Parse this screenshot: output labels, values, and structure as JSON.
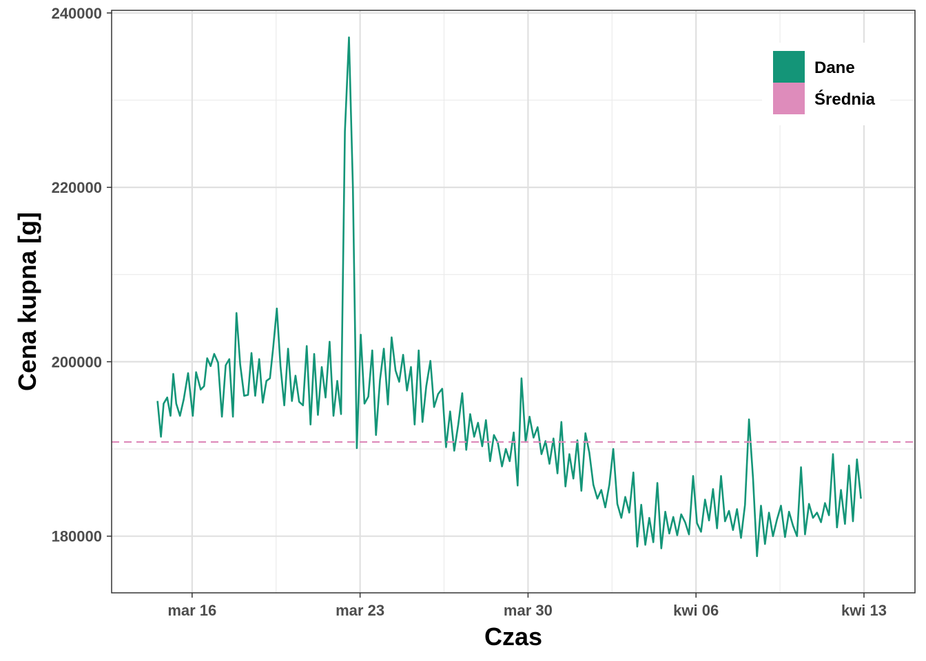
{
  "chart_data": {
    "type": "line",
    "xlabel": "Czas",
    "ylabel": "Cena kupna [g]",
    "x_unit": "date",
    "xlim": [
      "2025-03-12T15:30",
      "2025-04-15T03:00"
    ],
    "ylim": [
      173500,
      240300
    ],
    "x_ticks": [
      {
        "date": "2025-03-16",
        "label": "mar 16"
      },
      {
        "date": "2025-03-23",
        "label": "mar 23"
      },
      {
        "date": "2025-03-30",
        "label": "mar 30"
      },
      {
        "date": "2025-04-06",
        "label": "kwi 06"
      },
      {
        "date": "2025-04-13",
        "label": "kwi 13"
      }
    ],
    "x_minor_ticks": [
      "2025-03-19T12:00",
      "2025-03-26T12:00",
      "2025-04-02T12:00",
      "2025-04-09T12:00"
    ],
    "y_ticks": [
      180000,
      200000,
      220000,
      240000
    ],
    "y_minor_ticks": [
      190000,
      210000,
      230000
    ],
    "grid": true,
    "legend": {
      "position": "top-right",
      "items": [
        {
          "label": "Dane",
          "color": "#149578"
        },
        {
          "label": "Średnia",
          "color": "#de8cbb"
        }
      ]
    },
    "series": [
      {
        "name": "Dane",
        "color": "#149578",
        "points": [
          [
            "2025-03-14T13:25",
            195500
          ],
          [
            "2025-03-14T16:50",
            191400
          ],
          [
            "2025-03-14T19:30",
            195200
          ],
          [
            "2025-03-14T23:05",
            195900
          ],
          [
            "2025-03-15T02:25",
            193800
          ],
          [
            "2025-03-15T05:10",
            198600
          ],
          [
            "2025-03-15T08:10",
            195200
          ],
          [
            "2025-03-15T11:50",
            193800
          ],
          [
            "2025-03-15T15:40",
            195700
          ],
          [
            "2025-03-15T20:00",
            198700
          ],
          [
            "2025-03-16T00:40",
            193800
          ],
          [
            "2025-03-16T04:00",
            198800
          ],
          [
            "2025-03-16T08:35",
            196800
          ],
          [
            "2025-03-16T12:00",
            197200
          ],
          [
            "2025-03-16T15:05",
            200400
          ],
          [
            "2025-03-16T18:30",
            199500
          ],
          [
            "2025-03-16T22:05",
            200900
          ],
          [
            "2025-03-17T02:00",
            199900
          ],
          [
            "2025-03-17T05:50",
            193700
          ],
          [
            "2025-03-17T09:35",
            199600
          ],
          [
            "2025-03-17T13:10",
            200300
          ],
          [
            "2025-03-17T16:50",
            193700
          ],
          [
            "2025-03-17T20:20",
            205600
          ],
          [
            "2025-03-18T00:05",
            199700
          ],
          [
            "2025-03-18T04:05",
            196100
          ],
          [
            "2025-03-18T07:55",
            196200
          ],
          [
            "2025-03-18T11:25",
            201000
          ],
          [
            "2025-03-18T15:05",
            196100
          ],
          [
            "2025-03-18T19:05",
            200300
          ],
          [
            "2025-03-18T22:40",
            195300
          ],
          [
            "2025-03-19T02:20",
            197800
          ],
          [
            "2025-03-19T05:50",
            198100
          ],
          [
            "2025-03-19T09:10",
            201700
          ],
          [
            "2025-03-19T12:45",
            206100
          ],
          [
            "2025-03-19T16:25",
            199500
          ],
          [
            "2025-03-19T20:10",
            195000
          ],
          [
            "2025-03-20T00:00",
            201500
          ],
          [
            "2025-03-20T03:50",
            195500
          ],
          [
            "2025-03-20T07:25",
            198400
          ],
          [
            "2025-03-20T11:05",
            195400
          ],
          [
            "2025-03-20T14:55",
            195000
          ],
          [
            "2025-03-20T18:40",
            201800
          ],
          [
            "2025-03-20T22:25",
            192800
          ],
          [
            "2025-03-21T02:05",
            200900
          ],
          [
            "2025-03-21T05:50",
            193900
          ],
          [
            "2025-03-21T09:40",
            199400
          ],
          [
            "2025-03-21T13:30",
            195900
          ],
          [
            "2025-03-21T17:30",
            202300
          ],
          [
            "2025-03-21T21:25",
            193800
          ],
          [
            "2025-03-22T01:10",
            197800
          ],
          [
            "2025-03-22T05:00",
            194000
          ],
          [
            "2025-03-22T08:50",
            226400
          ],
          [
            "2025-03-22T12:55",
            237200
          ],
          [
            "2025-03-22T16:50",
            220000
          ],
          [
            "2025-03-22T20:45",
            190100
          ],
          [
            "2025-03-23T00:40",
            203100
          ],
          [
            "2025-03-23T04:25",
            195200
          ],
          [
            "2025-03-23T08:15",
            196000
          ],
          [
            "2025-03-23T12:10",
            201300
          ],
          [
            "2025-03-23T15:55",
            191600
          ],
          [
            "2025-03-23T19:55",
            197900
          ],
          [
            "2025-03-23T23:45",
            201500
          ],
          [
            "2025-03-24T03:50",
            195100
          ],
          [
            "2025-03-24T07:35",
            202800
          ],
          [
            "2025-03-24T11:30",
            199000
          ],
          [
            "2025-03-24T15:10",
            197700
          ],
          [
            "2025-03-24T19:05",
            200800
          ],
          [
            "2025-03-24T22:55",
            196700
          ],
          [
            "2025-03-25T02:55",
            199400
          ],
          [
            "2025-03-25T06:35",
            192800
          ],
          [
            "2025-03-25T10:40",
            201300
          ],
          [
            "2025-03-25T14:25",
            193100
          ],
          [
            "2025-03-25T18:15",
            197200
          ],
          [
            "2025-03-25T22:20",
            200100
          ],
          [
            "2025-03-26T02:00",
            194800
          ],
          [
            "2025-03-26T06:05",
            196300
          ],
          [
            "2025-03-26T10:10",
            196900
          ],
          [
            "2025-03-26T14:00",
            190200
          ],
          [
            "2025-03-26T18:05",
            194300
          ],
          [
            "2025-03-26T22:10",
            189800
          ],
          [
            "2025-03-27T02:10",
            192800
          ],
          [
            "2025-03-27T06:10",
            196400
          ],
          [
            "2025-03-27T10:10",
            189900
          ],
          [
            "2025-03-27T14:05",
            194000
          ],
          [
            "2025-03-27T18:05",
            191400
          ],
          [
            "2025-03-27T22:00",
            193000
          ],
          [
            "2025-03-28T02:10",
            190300
          ],
          [
            "2025-03-28T05:55",
            193300
          ],
          [
            "2025-03-28T10:00",
            188600
          ],
          [
            "2025-03-28T13:55",
            191600
          ],
          [
            "2025-03-28T17:50",
            190700
          ],
          [
            "2025-03-28T21:55",
            188000
          ],
          [
            "2025-03-29T01:50",
            190000
          ],
          [
            "2025-03-29T05:40",
            188600
          ],
          [
            "2025-03-29T09:40",
            191900
          ],
          [
            "2025-03-29T13:35",
            185800
          ],
          [
            "2025-03-29T17:25",
            198100
          ],
          [
            "2025-03-29T21:35",
            190800
          ],
          [
            "2025-03-30T01:30",
            193700
          ],
          [
            "2025-03-30T05:30",
            191300
          ],
          [
            "2025-03-30T09:35",
            192500
          ],
          [
            "2025-03-30T13:25",
            189400
          ],
          [
            "2025-03-30T17:30",
            190900
          ],
          [
            "2025-03-30T21:25",
            188300
          ],
          [
            "2025-03-31T01:25",
            191200
          ],
          [
            "2025-03-31T05:25",
            187200
          ],
          [
            "2025-03-31T09:20",
            193100
          ],
          [
            "2025-03-31T13:25",
            185700
          ],
          [
            "2025-03-31T17:20",
            189400
          ],
          [
            "2025-03-31T21:20",
            186600
          ],
          [
            "2025-04-01T01:20",
            191000
          ],
          [
            "2025-04-01T05:20",
            185200
          ],
          [
            "2025-04-01T09:25",
            191800
          ],
          [
            "2025-04-01T13:15",
            189600
          ],
          [
            "2025-04-01T17:20",
            185900
          ],
          [
            "2025-04-01T21:20",
            184300
          ],
          [
            "2025-04-02T01:15",
            185300
          ],
          [
            "2025-04-02T05:15",
            183300
          ],
          [
            "2025-04-02T09:20",
            185900
          ],
          [
            "2025-04-02T13:15",
            190000
          ],
          [
            "2025-04-02T17:20",
            183700
          ],
          [
            "2025-04-02T21:20",
            182100
          ],
          [
            "2025-04-03T01:15",
            184500
          ],
          [
            "2025-04-03T05:15",
            182700
          ],
          [
            "2025-04-03T09:20",
            187300
          ],
          [
            "2025-04-03T13:15",
            178800
          ],
          [
            "2025-04-03T17:15",
            183600
          ],
          [
            "2025-04-03T21:15",
            179000
          ],
          [
            "2025-04-04T01:15",
            182100
          ],
          [
            "2025-04-04T05:15",
            179300
          ],
          [
            "2025-04-04T09:20",
            186100
          ],
          [
            "2025-04-04T13:15",
            178600
          ],
          [
            "2025-04-04T17:15",
            182800
          ],
          [
            "2025-04-04T21:15",
            180300
          ],
          [
            "2025-04-05T01:15",
            182200
          ],
          [
            "2025-04-05T05:10",
            180100
          ],
          [
            "2025-04-05T09:10",
            182500
          ],
          [
            "2025-04-05T13:05",
            181600
          ],
          [
            "2025-04-05T17:00",
            180200
          ],
          [
            "2025-04-05T21:05",
            186900
          ],
          [
            "2025-04-06T01:00",
            181500
          ],
          [
            "2025-04-06T05:00",
            180500
          ],
          [
            "2025-04-06T09:00",
            184200
          ],
          [
            "2025-04-06T13:00",
            181800
          ],
          [
            "2025-04-06T17:00",
            185400
          ],
          [
            "2025-04-06T21:00",
            180900
          ],
          [
            "2025-04-07T01:00",
            186900
          ],
          [
            "2025-04-07T05:00",
            181700
          ],
          [
            "2025-04-07T09:00",
            182900
          ],
          [
            "2025-04-07T13:00",
            180700
          ],
          [
            "2025-04-07T17:00",
            183100
          ],
          [
            "2025-04-07T21:00",
            179800
          ],
          [
            "2025-04-08T01:00",
            183600
          ],
          [
            "2025-04-08T05:00",
            193400
          ],
          [
            "2025-04-08T09:00",
            186700
          ],
          [
            "2025-04-08T13:00",
            177700
          ],
          [
            "2025-04-08T17:00",
            183500
          ],
          [
            "2025-04-08T21:00",
            179100
          ],
          [
            "2025-04-09T01:00",
            182700
          ],
          [
            "2025-04-09T05:00",
            180000
          ],
          [
            "2025-04-09T09:00",
            181900
          ],
          [
            "2025-04-09T13:00",
            183500
          ],
          [
            "2025-04-09T17:00",
            179900
          ],
          [
            "2025-04-09T21:00",
            182800
          ],
          [
            "2025-04-10T01:00",
            181200
          ],
          [
            "2025-04-10T05:00",
            180000
          ],
          [
            "2025-04-10T09:00",
            187900
          ],
          [
            "2025-04-10T13:00",
            180200
          ],
          [
            "2025-04-10T17:00",
            183700
          ],
          [
            "2025-04-10T21:00",
            182100
          ],
          [
            "2025-04-11T01:00",
            182700
          ],
          [
            "2025-04-11T05:00",
            181600
          ],
          [
            "2025-04-11T09:00",
            183800
          ],
          [
            "2025-04-11T13:00",
            182400
          ],
          [
            "2025-04-11T17:00",
            189400
          ],
          [
            "2025-04-11T21:00",
            181000
          ],
          [
            "2025-04-12T01:00",
            185300
          ],
          [
            "2025-04-12T05:00",
            181400
          ],
          [
            "2025-04-12T09:00",
            188100
          ],
          [
            "2025-04-12T13:00",
            181700
          ],
          [
            "2025-04-12T17:00",
            188800
          ],
          [
            "2025-04-12T21:00",
            184300
          ]
        ]
      },
      {
        "name": "Średnia",
        "color": "#de8cbb",
        "style": "dashed",
        "value": 190800
      }
    ]
  }
}
